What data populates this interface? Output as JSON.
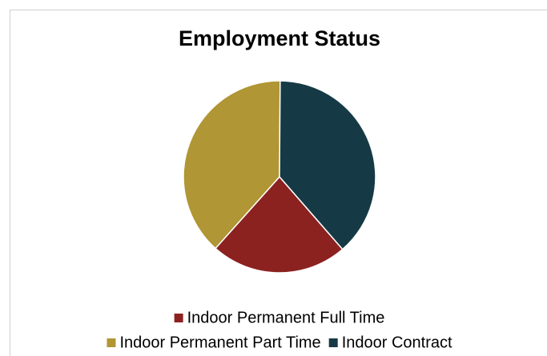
{
  "chart_data": {
    "type": "pie",
    "title": "Employment Status",
    "categories": [
      "Indoor Permanent Full Time",
      "Indoor Permanent Part Time",
      "Indoor Contract"
    ],
    "values": [
      23,
      38.5,
      38.5
    ],
    "colors": [
      "#8b2220",
      "#b09634",
      "#163a45"
    ],
    "start_angle": 139,
    "legend": "bottom"
  }
}
